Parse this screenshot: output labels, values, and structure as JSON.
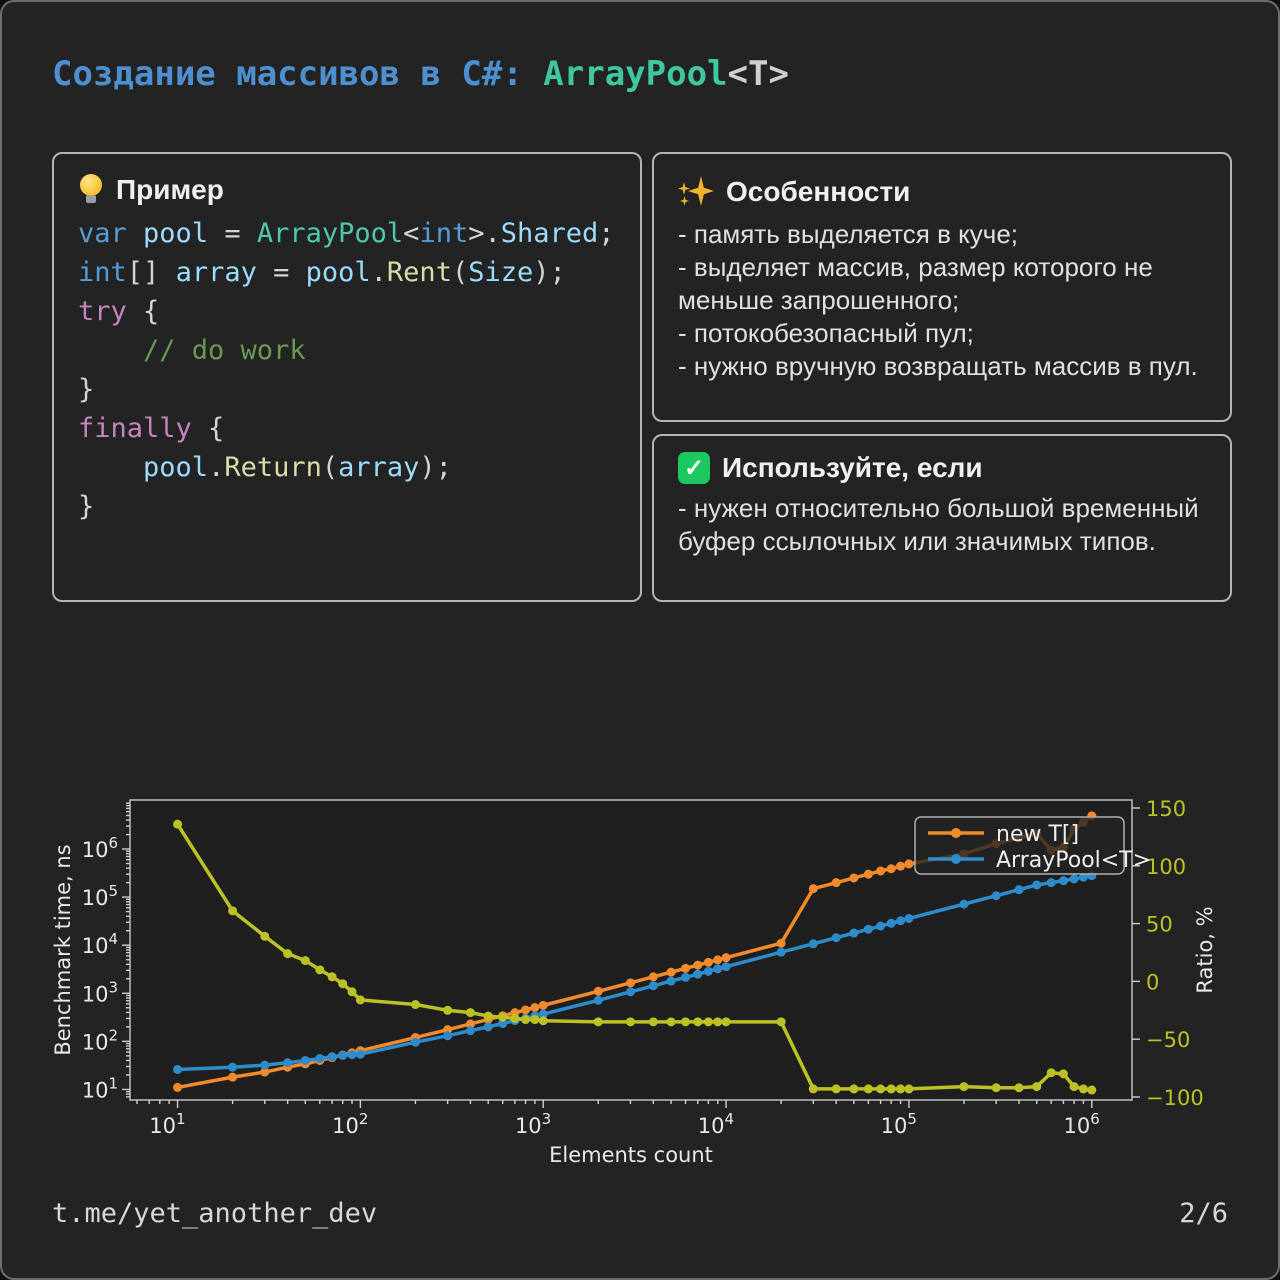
{
  "page": {
    "title": {
      "part1": "Создание массивов в C#: ",
      "part2": "ArrayPool",
      "part3": "<T>"
    },
    "footer_left": "t.me/yet_another_dev",
    "footer_right": "2/6"
  },
  "example_card": {
    "header": "Пример",
    "icon": "lightbulb-icon",
    "code_lines": [
      [
        {
          "t": "var",
          "c": "kw"
        },
        {
          "t": " ",
          "c": "pun"
        },
        {
          "t": "pool",
          "c": "var"
        },
        {
          "t": " = ",
          "c": "pun"
        },
        {
          "t": "ArrayPool",
          "c": "cls"
        },
        {
          "t": "<",
          "c": "pun"
        },
        {
          "t": "int",
          "c": "kw"
        },
        {
          "t": ">.",
          "c": "pun"
        },
        {
          "t": "Shared",
          "c": "var"
        },
        {
          "t": ";",
          "c": "pun"
        }
      ],
      [
        {
          "t": "int",
          "c": "kw"
        },
        {
          "t": "[] ",
          "c": "pun"
        },
        {
          "t": "array",
          "c": "var"
        },
        {
          "t": " = ",
          "c": "pun"
        },
        {
          "t": "pool",
          "c": "var"
        },
        {
          "t": ".",
          "c": "pun"
        },
        {
          "t": "Rent",
          "c": "fn"
        },
        {
          "t": "(",
          "c": "pun"
        },
        {
          "t": "Size",
          "c": "var"
        },
        {
          "t": ");",
          "c": "pun"
        }
      ],
      [
        {
          "t": "try",
          "c": "kw2"
        },
        {
          "t": " {",
          "c": "pun"
        }
      ],
      [
        {
          "t": "    // do work",
          "c": "com"
        }
      ],
      [
        {
          "t": "}",
          "c": "pun"
        }
      ],
      [
        {
          "t": "finally",
          "c": "kw2"
        },
        {
          "t": " {",
          "c": "pun"
        }
      ],
      [
        {
          "t": "    ",
          "c": "pun"
        },
        {
          "t": "pool",
          "c": "var"
        },
        {
          "t": ".",
          "c": "pun"
        },
        {
          "t": "Return",
          "c": "fn"
        },
        {
          "t": "(",
          "c": "pun"
        },
        {
          "t": "array",
          "c": "var"
        },
        {
          "t": ");",
          "c": "pun"
        }
      ],
      [
        {
          "t": "}",
          "c": "pun"
        }
      ]
    ]
  },
  "features_card": {
    "header": "Особенности",
    "icon": "sparkles-icon",
    "bullets": [
      "- память выделяется в куче;",
      "- выделяет массив, размер которого не меньше запрошенного;",
      "- потокобезопасный пул;",
      "- нужно вручную возвращать массив в пул."
    ]
  },
  "use_card": {
    "header": "Используйте, если",
    "icon": "check-icon",
    "check_glyph": "✓",
    "bullets": [
      "- нужен относительно большой временный буфер ссылочных или значимых типов."
    ]
  },
  "chart_data": {
    "type": "line",
    "title": "",
    "xlabel": "Elements count",
    "ylabel_left": "Benchmark time, ns",
    "ylabel_right": "Ratio, %",
    "x_scale": "log",
    "y_left_scale": "log",
    "y_right_scale": "linear",
    "grid": false,
    "legend_position": "upper right",
    "legend": [
      "new T[]",
      "ArrayPool<T>"
    ],
    "x_tick_exponents": [
      1,
      2,
      3,
      4,
      5,
      6
    ],
    "y_left_tick_exponents": [
      1,
      2,
      3,
      4,
      5,
      6
    ],
    "y_right_ticks": [
      150,
      100,
      50,
      0,
      -50,
      -100
    ],
    "x_range_log10": [
      0.74,
      6.22
    ],
    "y_left_range_log10": [
      0.78,
      7.02
    ],
    "y_right_range": [
      -102.6,
      156.9
    ],
    "x": [
      10,
      20,
      30,
      40,
      50,
      60,
      70,
      80,
      90,
      100,
      200,
      300,
      400,
      500,
      600,
      700,
      800,
      900,
      1000,
      2000,
      3000,
      4000,
      5000,
      6000,
      7000,
      8000,
      9000,
      10000,
      20000,
      30000,
      40000,
      50000,
      60000,
      70000,
      80000,
      90000,
      100000,
      200000,
      300000,
      400000,
      500000,
      600000,
      700000,
      800000,
      900000,
      1000000
    ],
    "series": [
      {
        "name": "new T[]",
        "axis": "left",
        "color": "#f28b2b",
        "values": [
          11,
          18,
          23,
          29,
          34,
          40,
          46,
          52,
          58,
          64,
          120,
          175,
          230,
          285,
          340,
          395,
          450,
          505,
          560,
          1100,
          1650,
          2200,
          2750,
          3300,
          3850,
          4400,
          4950,
          5500,
          11000,
          150000,
          200000,
          250000,
          300000,
          350000,
          390000,
          440000,
          490000,
          790000,
          1300000,
          1700000,
          2100000,
          950000,
          1100000,
          2600000,
          3600000,
          4900000
        ]
      },
      {
        "name": "ArrayPool<T>",
        "axis": "left",
        "color": "#2f8ccc",
        "values": [
          26,
          29,
          32,
          36,
          40,
          44,
          48,
          51,
          53,
          54,
          96,
          131,
          167,
          200,
          235,
          270,
          302,
          336,
          370,
          715,
          1070,
          1430,
          1790,
          2150,
          2500,
          2860,
          3220,
          3575,
          7150,
          10700,
          14300,
          17900,
          21500,
          25000,
          28600,
          32200,
          36000,
          71500,
          107000,
          143000,
          179000,
          200000,
          220000,
          240000,
          260000,
          280000
        ]
      },
      {
        "name": "Ratio",
        "axis": "right",
        "color": "#bcc226",
        "values": [
          136,
          61,
          39,
          24,
          18,
          10,
          4,
          -2,
          -9,
          -16,
          -20,
          -25,
          -27,
          -30,
          -31,
          -32,
          -33,
          -33,
          -34,
          -35,
          -35,
          -35,
          -35,
          -35,
          -35,
          -35,
          -35,
          -35,
          -35,
          -93,
          -93,
          -93,
          -93,
          -93,
          -93,
          -93,
          -93,
          -91,
          -92,
          -92,
          -91,
          -79,
          -80,
          -91,
          -93,
          -94
        ]
      }
    ]
  }
}
